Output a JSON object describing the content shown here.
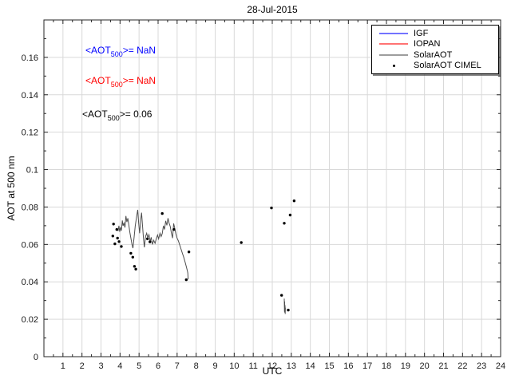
{
  "chart_data": {
    "type": "line",
    "title": "28-Jul-2015",
    "xlabel": "UTC",
    "ylabel": "AOT at 500 nm",
    "xlim": [
      0,
      24
    ],
    "ylim": [
      0,
      0.18
    ],
    "xticks": [
      1,
      2,
      3,
      4,
      5,
      6,
      7,
      8,
      9,
      10,
      11,
      12,
      13,
      14,
      15,
      16,
      17,
      18,
      19,
      20,
      21,
      22,
      23,
      24
    ],
    "yticks": [
      0,
      0.02,
      0.04,
      0.06,
      0.08,
      0.1,
      0.12,
      0.14,
      0.16
    ],
    "ytick_labels": [
      "0",
      "0.02",
      "0.04",
      "0.06",
      "0.08",
      "0.1",
      "0.12",
      "0.14",
      "0.16"
    ],
    "x_minor_step": 0.5,
    "y_minor_step": 0.01,
    "grid": true,
    "legend_position": "northeast",
    "series": [
      {
        "name": "IGF",
        "type": "line",
        "color": "#0000ff",
        "segments": []
      },
      {
        "name": "IOPAN",
        "type": "line",
        "color": "#ff0000",
        "segments": []
      },
      {
        "name": "SolarAOT",
        "type": "line",
        "color": "#4d4d4d",
        "segments": [
          [
            [
              3.9,
              0.0672
            ],
            [
              3.94,
              0.07
            ],
            [
              3.98,
              0.0668
            ],
            [
              4.03,
              0.0692
            ],
            [
              4.07,
              0.0673
            ],
            [
              4.12,
              0.0728
            ],
            [
              4.16,
              0.07
            ],
            [
              4.21,
              0.0714
            ],
            [
              4.26,
              0.069
            ],
            [
              4.31,
              0.0752
            ],
            [
              4.36,
              0.072
            ],
            [
              4.41,
              0.074
            ],
            [
              4.46,
              0.0705
            ],
            [
              4.52,
              0.0663
            ],
            [
              4.58,
              0.0627
            ],
            [
              4.63,
              0.06
            ],
            [
              4.68,
              0.058
            ],
            [
              4.74,
              0.064
            ],
            [
              4.8,
              0.07
            ],
            [
              4.87,
              0.0748
            ],
            [
              4.93,
              0.0785
            ],
            [
              4.98,
              0.0712
            ],
            [
              5.03,
              0.066
            ],
            [
              5.08,
              0.0726
            ],
            [
              5.13,
              0.077
            ],
            [
              5.18,
              0.07
            ],
            [
              5.23,
              0.0638
            ],
            [
              5.28,
              0.0585
            ],
            [
              5.34,
              0.0642
            ],
            [
              5.4,
              0.066
            ],
            [
              5.46,
              0.0636
            ],
            [
              5.52,
              0.0652
            ],
            [
              5.58,
              0.0616
            ],
            [
              5.64,
              0.0638
            ],
            [
              5.7,
              0.06
            ],
            [
              5.77,
              0.0622
            ],
            [
              5.84,
              0.0606
            ],
            [
              5.9,
              0.0628
            ],
            [
              5.97,
              0.065
            ],
            [
              6.03,
              0.063
            ],
            [
              6.1,
              0.066
            ],
            [
              6.16,
              0.0642
            ],
            [
              6.22,
              0.0658
            ],
            [
              6.28,
              0.07
            ],
            [
              6.34,
              0.068
            ],
            [
              6.4,
              0.0726
            ],
            [
              6.46,
              0.0702
            ],
            [
              6.52,
              0.074
            ],
            [
              6.58,
              0.0714
            ],
            [
              6.64,
              0.0695
            ],
            [
              6.7,
              0.066
            ],
            [
              6.76,
              0.0634
            ],
            [
              6.82,
              0.0712
            ],
            [
              6.87,
              0.069
            ],
            [
              6.93,
              0.0658
            ],
            [
              7.0,
              0.0634
            ],
            [
              7.07,
              0.0618
            ],
            [
              7.14,
              0.0596
            ],
            [
              7.21,
              0.0574
            ],
            [
              7.28,
              0.0552
            ],
            [
              7.35,
              0.053
            ],
            [
              7.42,
              0.0506
            ],
            [
              7.48,
              0.0482
            ],
            [
              7.53,
              0.0462
            ],
            [
              7.56,
              0.0448
            ],
            [
              7.58,
              0.0413
            ]
          ],
          [
            [
              12.63,
              0.031
            ],
            [
              12.64,
              0.024
            ],
            [
              12.65,
              0.0295
            ],
            [
              12.66,
              0.0235
            ],
            [
              12.67,
              0.0275
            ],
            [
              12.68,
              0.0228
            ],
            [
              12.69,
              0.0262
            ]
          ]
        ]
      },
      {
        "name": "SolarAOT CIMEL",
        "type": "scatter",
        "color": "#000000",
        "points": [
          [
            3.62,
            0.0645
          ],
          [
            3.66,
            0.0709
          ],
          [
            3.73,
            0.0603
          ],
          [
            3.83,
            0.068
          ],
          [
            3.87,
            0.0634
          ],
          [
            3.95,
            0.0615
          ],
          [
            4.07,
            0.0589
          ],
          [
            4.57,
            0.0553
          ],
          [
            4.67,
            0.0532
          ],
          [
            4.76,
            0.0483
          ],
          [
            4.83,
            0.0468
          ],
          [
            5.44,
            0.063
          ],
          [
            5.57,
            0.0614
          ],
          [
            6.22,
            0.0765
          ],
          [
            6.83,
            0.068
          ],
          [
            7.48,
            0.0411
          ],
          [
            7.62,
            0.056
          ],
          [
            10.37,
            0.061
          ],
          [
            11.96,
            0.0795
          ],
          [
            12.49,
            0.0328
          ],
          [
            12.63,
            0.0713
          ],
          [
            12.84,
            0.0249
          ],
          [
            12.94,
            0.0757
          ],
          [
            13.15,
            0.0833
          ]
        ]
      }
    ],
    "annotations": [
      {
        "prefix": "<AOT",
        "sub": "500",
        "rest": ">=  NaN",
        "color": "#0000ff"
      },
      {
        "prefix": "<AOT",
        "sub": "500",
        "rest": ">=  NaN",
        "color": "#ff0000"
      },
      {
        "prefix": "<AOT",
        "sub": "500",
        "rest": ">= 0.06",
        "color": "#000000"
      }
    ],
    "colors": {
      "grid": "#d9d9d9",
      "axis": "#262626",
      "background": "#ffffff"
    }
  }
}
